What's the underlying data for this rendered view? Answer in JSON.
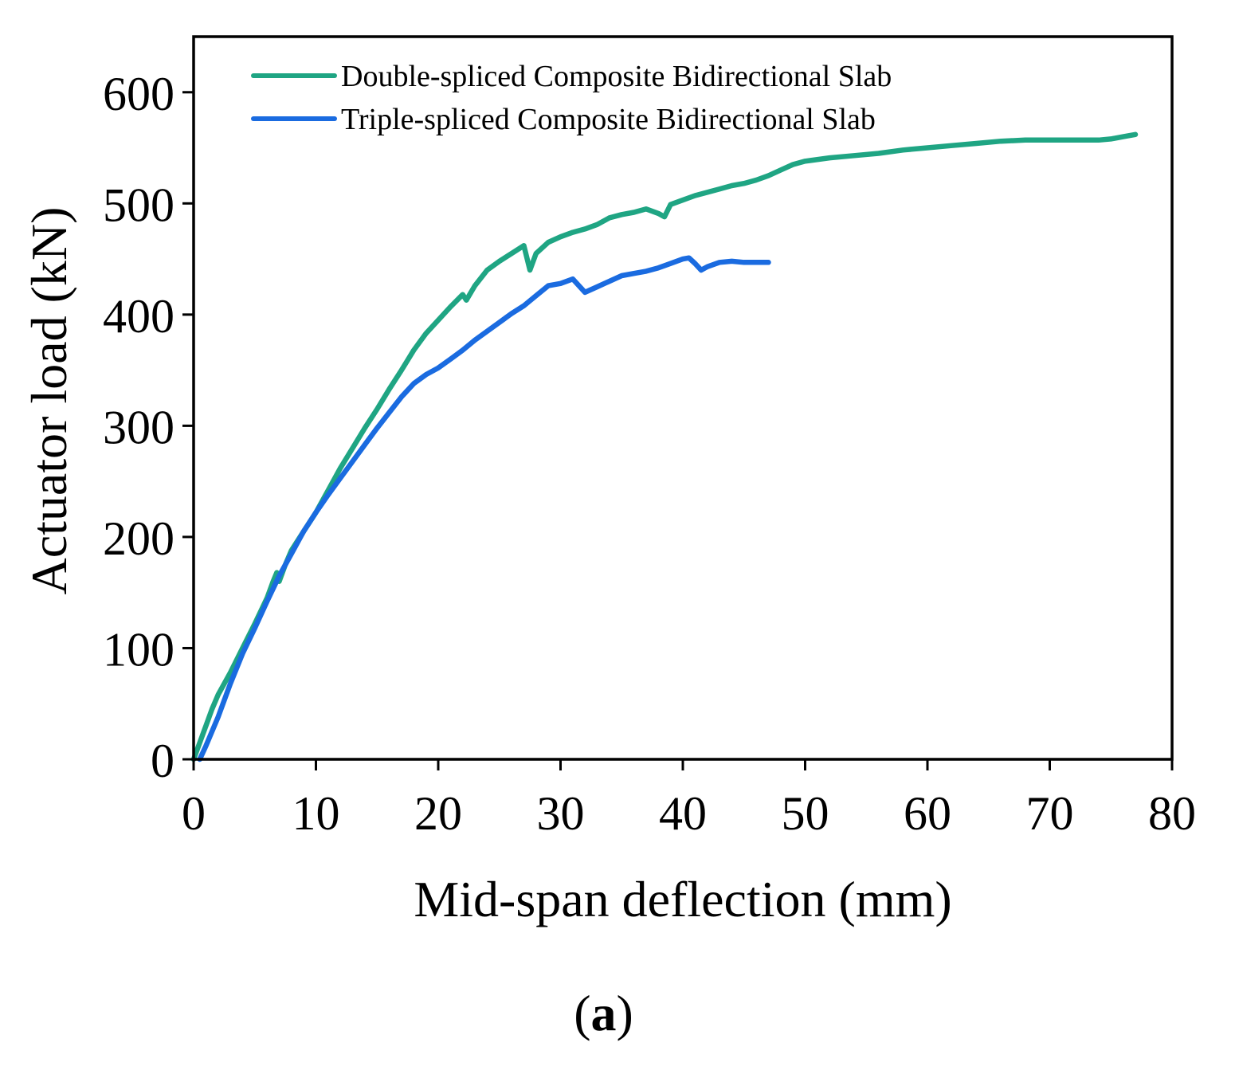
{
  "chart_data": {
    "type": "line",
    "title": "",
    "xlabel": "Mid-span deflection (mm)",
    "ylabel": "Actuator load (kN)",
    "xlim": [
      0,
      80
    ],
    "ylim": [
      0,
      650
    ],
    "xticks": [
      0,
      10,
      20,
      30,
      40,
      50,
      60,
      70,
      80
    ],
    "yticks": [
      0,
      100,
      200,
      300,
      400,
      500,
      600
    ],
    "grid": false,
    "legend_position": "top-left",
    "series": [
      {
        "name": "Double-spliced Composite Bidirectional Slab",
        "color": "#1fa583",
        "points": [
          [
            0,
            0
          ],
          [
            0.5,
            15
          ],
          [
            1,
            30
          ],
          [
            1.5,
            45
          ],
          [
            2,
            58
          ],
          [
            3,
            78
          ],
          [
            4,
            100
          ],
          [
            5,
            122
          ],
          [
            6,
            145
          ],
          [
            6.5,
            160
          ],
          [
            6.8,
            168
          ],
          [
            7,
            160
          ],
          [
            7.5,
            175
          ],
          [
            8,
            188
          ],
          [
            9,
            205
          ],
          [
            10,
            222
          ],
          [
            11,
            242
          ],
          [
            12,
            262
          ],
          [
            13,
            280
          ],
          [
            14,
            298
          ],
          [
            15,
            315
          ],
          [
            16,
            333
          ],
          [
            17,
            350
          ],
          [
            18,
            368
          ],
          [
            19,
            383
          ],
          [
            20,
            395
          ],
          [
            21,
            407
          ],
          [
            22,
            418
          ],
          [
            22.3,
            413
          ],
          [
            23,
            426
          ],
          [
            24,
            440
          ],
          [
            25,
            448
          ],
          [
            26,
            455
          ],
          [
            27,
            462
          ],
          [
            27.5,
            440
          ],
          [
            28,
            455
          ],
          [
            29,
            465
          ],
          [
            30,
            470
          ],
          [
            31,
            474
          ],
          [
            32,
            477
          ],
          [
            33,
            481
          ],
          [
            34,
            487
          ],
          [
            35,
            490
          ],
          [
            36,
            492
          ],
          [
            37,
            495
          ],
          [
            38,
            491
          ],
          [
            38.5,
            488
          ],
          [
            39,
            499
          ],
          [
            40,
            503
          ],
          [
            41,
            507
          ],
          [
            42,
            510
          ],
          [
            43,
            513
          ],
          [
            44,
            516
          ],
          [
            45,
            518
          ],
          [
            46,
            521
          ],
          [
            47,
            525
          ],
          [
            48,
            530
          ],
          [
            49,
            535
          ],
          [
            50,
            538
          ],
          [
            52,
            541
          ],
          [
            54,
            543
          ],
          [
            56,
            545
          ],
          [
            58,
            548
          ],
          [
            60,
            550
          ],
          [
            62,
            552
          ],
          [
            64,
            554
          ],
          [
            66,
            556
          ],
          [
            68,
            557
          ],
          [
            70,
            557
          ],
          [
            72,
            557
          ],
          [
            74,
            557
          ],
          [
            75,
            558
          ],
          [
            76,
            560
          ],
          [
            77,
            562
          ]
        ]
      },
      {
        "name": "Triple-spliced Composite Bidirectional Slab",
        "color": "#1a6be0",
        "points": [
          [
            0.5,
            0
          ],
          [
            1,
            12
          ],
          [
            2,
            38
          ],
          [
            3,
            68
          ],
          [
            4,
            95
          ],
          [
            5,
            118
          ],
          [
            6,
            142
          ],
          [
            7,
            165
          ],
          [
            8,
            185
          ],
          [
            9,
            205
          ],
          [
            10,
            222
          ],
          [
            11,
            238
          ],
          [
            12,
            253
          ],
          [
            13,
            268
          ],
          [
            14,
            283
          ],
          [
            15,
            298
          ],
          [
            16,
            312
          ],
          [
            17,
            326
          ],
          [
            18,
            338
          ],
          [
            19,
            346
          ],
          [
            20,
            352
          ],
          [
            21,
            360
          ],
          [
            22,
            368
          ],
          [
            23,
            377
          ],
          [
            24,
            385
          ],
          [
            25,
            393
          ],
          [
            26,
            401
          ],
          [
            27,
            408
          ],
          [
            28,
            417
          ],
          [
            29,
            426
          ],
          [
            30,
            428
          ],
          [
            31,
            432
          ],
          [
            32,
            420
          ],
          [
            33,
            425
          ],
          [
            34,
            430
          ],
          [
            35,
            435
          ],
          [
            36,
            437
          ],
          [
            37,
            439
          ],
          [
            38,
            442
          ],
          [
            39,
            446
          ],
          [
            40,
            450
          ],
          [
            40.5,
            451
          ],
          [
            41,
            446
          ],
          [
            41.5,
            440
          ],
          [
            42,
            443
          ],
          [
            43,
            447
          ],
          [
            44,
            448
          ],
          [
            45,
            447
          ],
          [
            46,
            447
          ],
          [
            47,
            447
          ]
        ]
      }
    ]
  },
  "caption": {
    "open": "(",
    "letter": "a",
    "close": ")"
  }
}
